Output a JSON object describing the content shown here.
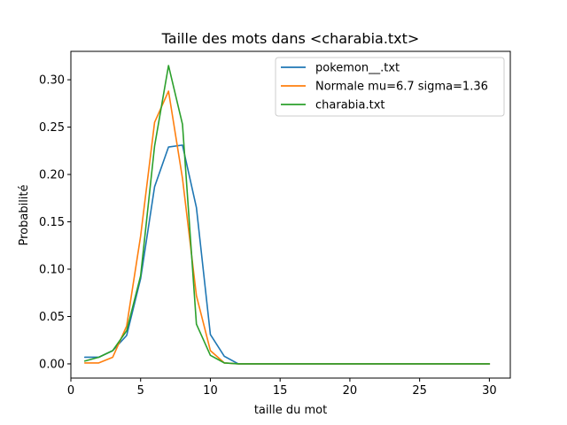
{
  "chart_data": {
    "type": "line",
    "title": "Taille des mots dans <charabia.txt>",
    "xlabel": "taille du mot",
    "ylabel": "Probabilité",
    "xlim": [
      0,
      31.5
    ],
    "ylim": [
      -0.015,
      0.33
    ],
    "xticks": [
      0,
      5,
      10,
      15,
      20,
      25,
      30
    ],
    "xtick_labels": [
      "0",
      "5",
      "10",
      "15",
      "20",
      "25",
      "30"
    ],
    "yticks": [
      0.0,
      0.05,
      0.1,
      0.15,
      0.2,
      0.25,
      0.3
    ],
    "ytick_labels": [
      "0.00",
      "0.05",
      "0.10",
      "0.15",
      "0.20",
      "0.25",
      "0.30"
    ],
    "grid": false,
    "legend_position": "top-right",
    "x": [
      1,
      2,
      3,
      4,
      5,
      6,
      7,
      8,
      9,
      10,
      11,
      12,
      13,
      14,
      15,
      16,
      17,
      18,
      19,
      20,
      21,
      22,
      23,
      24,
      25,
      26,
      27,
      28,
      29,
      30
    ],
    "series": [
      {
        "name": "pokemon__.txt",
        "color": "#1f77b4",
        "values": [
          0.007,
          0.007,
          0.014,
          0.03,
          0.09,
          0.187,
          0.229,
          0.231,
          0.165,
          0.031,
          0.008,
          0.0,
          0.0,
          0.0,
          0.0,
          0.0,
          0.0,
          0.0,
          0.0,
          0.0,
          0.0,
          0.0,
          0.0,
          0.0,
          0.0,
          0.0,
          0.0,
          0.0,
          0.0,
          0.0
        ]
      },
      {
        "name": "Normale mu=6.7 sigma=1.36",
        "color": "#ff7f0e",
        "values": [
          0.001,
          0.001,
          0.007,
          0.04,
          0.135,
          0.255,
          0.288,
          0.196,
          0.072,
          0.014,
          0.001,
          0.0,
          0.0,
          0.0,
          0.0,
          0.0,
          0.0,
          0.0,
          0.0,
          0.0,
          0.0,
          0.0,
          0.0,
          0.0,
          0.0,
          0.0,
          0.0,
          0.0,
          0.0,
          0.0
        ]
      },
      {
        "name": "charabia.txt",
        "color": "#2ca02c",
        "values": [
          0.003,
          0.007,
          0.014,
          0.035,
          0.093,
          0.23,
          0.315,
          0.253,
          0.042,
          0.009,
          0.001,
          0.0,
          0.0,
          0.0,
          0.0,
          0.0,
          0.0,
          0.0,
          0.0,
          0.0,
          0.0,
          0.0,
          0.0,
          0.0,
          0.0,
          0.0,
          0.0,
          0.0,
          0.0,
          0.0
        ]
      }
    ]
  }
}
